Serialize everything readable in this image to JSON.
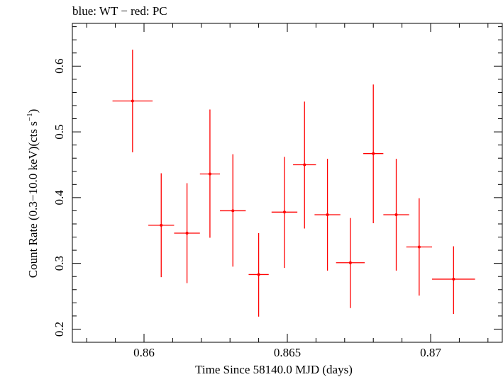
{
  "header_text": "blue: WT − red: PC",
  "chart_data": {
    "type": "scatter",
    "title": "blue: WT − red: PC",
    "xlabel": "Time Since 58140.0 MJD (days)",
    "ylabel_main": "Count Rate (0.3−10.0 keV)(cts s",
    "ylabel_sup": "−1",
    "ylabel_close": ")",
    "xlim": [
      0.8575,
      0.8725
    ],
    "ylim": [
      0.18,
      0.665
    ],
    "x_ticks": [
      0.86,
      0.865,
      0.87
    ],
    "x_tick_labels": [
      "0.86",
      "0.865",
      "0.87"
    ],
    "x_minor_step": 0.001,
    "y_ticks": [
      0.2,
      0.3,
      0.4,
      0.5,
      0.6
    ],
    "y_tick_labels": [
      "0.2",
      "0.3",
      "0.4",
      "0.5",
      "0.6"
    ],
    "y_minor_step": 0.02,
    "grid": false,
    "series": [
      {
        "color": "#ff0000",
        "points": [
          {
            "x": 0.8596,
            "xerr": 0.0007,
            "y": 0.547,
            "yerr_lo": 0.078,
            "yerr_hi": 0.078
          },
          {
            "x": 0.8606,
            "xerr": 0.00045,
            "y": 0.358,
            "yerr_lo": 0.079,
            "yerr_hi": 0.079
          },
          {
            "x": 0.8615,
            "xerr": 0.00045,
            "y": 0.346,
            "yerr_lo": 0.076,
            "yerr_hi": 0.076
          },
          {
            "x": 0.8623,
            "xerr": 0.00035,
            "y": 0.436,
            "yerr_lo": 0.097,
            "yerr_hi": 0.098
          },
          {
            "x": 0.8631,
            "xerr": 0.00045,
            "y": 0.38,
            "yerr_lo": 0.085,
            "yerr_hi": 0.086
          },
          {
            "x": 0.864,
            "xerr": 0.00035,
            "y": 0.283,
            "yerr_lo": 0.064,
            "yerr_hi": 0.063
          },
          {
            "x": 0.8649,
            "xerr": 0.00045,
            "y": 0.378,
            "yerr_lo": 0.085,
            "yerr_hi": 0.084
          },
          {
            "x": 0.8656,
            "xerr": 0.0004,
            "y": 0.45,
            "yerr_lo": 0.097,
            "yerr_hi": 0.096
          },
          {
            "x": 0.8664,
            "xerr": 0.00045,
            "y": 0.374,
            "yerr_lo": 0.085,
            "yerr_hi": 0.085
          },
          {
            "x": 0.8672,
            "xerr": 0.0005,
            "y": 0.301,
            "yerr_lo": 0.069,
            "yerr_hi": 0.068
          },
          {
            "x": 0.868,
            "xerr": 0.00035,
            "y": 0.467,
            "yerr_lo": 0.106,
            "yerr_hi": 0.105
          },
          {
            "x": 0.8688,
            "xerr": 0.00045,
            "y": 0.374,
            "yerr_lo": 0.085,
            "yerr_hi": 0.085
          },
          {
            "x": 0.8696,
            "xerr": 0.00045,
            "y": 0.325,
            "yerr_lo": 0.074,
            "yerr_hi": 0.074
          },
          {
            "x": 0.8708,
            "xerr": 0.00075,
            "y": 0.276,
            "yerr_lo": 0.053,
            "yerr_hi": 0.05
          }
        ]
      }
    ]
  }
}
